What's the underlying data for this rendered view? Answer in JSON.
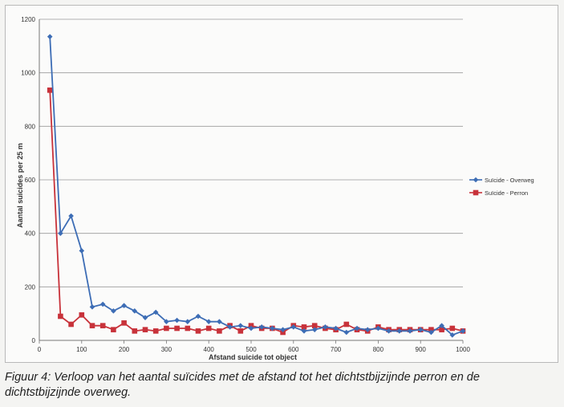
{
  "chart_data": {
    "type": "line",
    "title": "",
    "xlabel": "Afstand suicide tot object",
    "ylabel": "Aantal suicides per 25 m",
    "xlim": [
      0,
      1000
    ],
    "ylim": [
      0,
      1200
    ],
    "xticks": [
      0,
      100,
      200,
      300,
      400,
      500,
      600,
      700,
      800,
      900,
      1000
    ],
    "yticks": [
      0,
      200,
      400,
      600,
      800,
      1000,
      1200
    ],
    "grid": "horizontal",
    "legend_position": "right",
    "x": [
      25,
      50,
      75,
      100,
      125,
      150,
      175,
      200,
      225,
      250,
      275,
      300,
      325,
      350,
      375,
      400,
      425,
      450,
      475,
      500,
      525,
      550,
      575,
      600,
      625,
      650,
      675,
      700,
      725,
      750,
      775,
      800,
      825,
      850,
      875,
      900,
      925,
      950,
      975,
      1000
    ],
    "series": [
      {
        "name": "Suïcide - Overweg",
        "color": "#3d6db5",
        "marker": "diamond",
        "values": [
          1135,
          400,
          465,
          335,
          125,
          135,
          110,
          130,
          110,
          85,
          105,
          70,
          75,
          70,
          90,
          70,
          70,
          50,
          55,
          45,
          50,
          45,
          40,
          50,
          35,
          40,
          50,
          45,
          30,
          45,
          40,
          45,
          35,
          35,
          35,
          40,
          30,
          55,
          20,
          35
        ]
      },
      {
        "name": "Suïcide - Perron",
        "color": "#c8323a",
        "marker": "square",
        "values": [
          935,
          90,
          60,
          95,
          55,
          55,
          40,
          65,
          35,
          40,
          35,
          45,
          45,
          45,
          35,
          45,
          35,
          55,
          35,
          55,
          45,
          45,
          30,
          55,
          50,
          55,
          45,
          40,
          60,
          40,
          35,
          50,
          40,
          40,
          40,
          40,
          40,
          40,
          45,
          35
        ]
      }
    ]
  },
  "caption": "Figuur 4: Verloop van het aantal suïcides met de afstand tot het dichtstbijzijnde perron en de dichtstbijzijnde overweg."
}
